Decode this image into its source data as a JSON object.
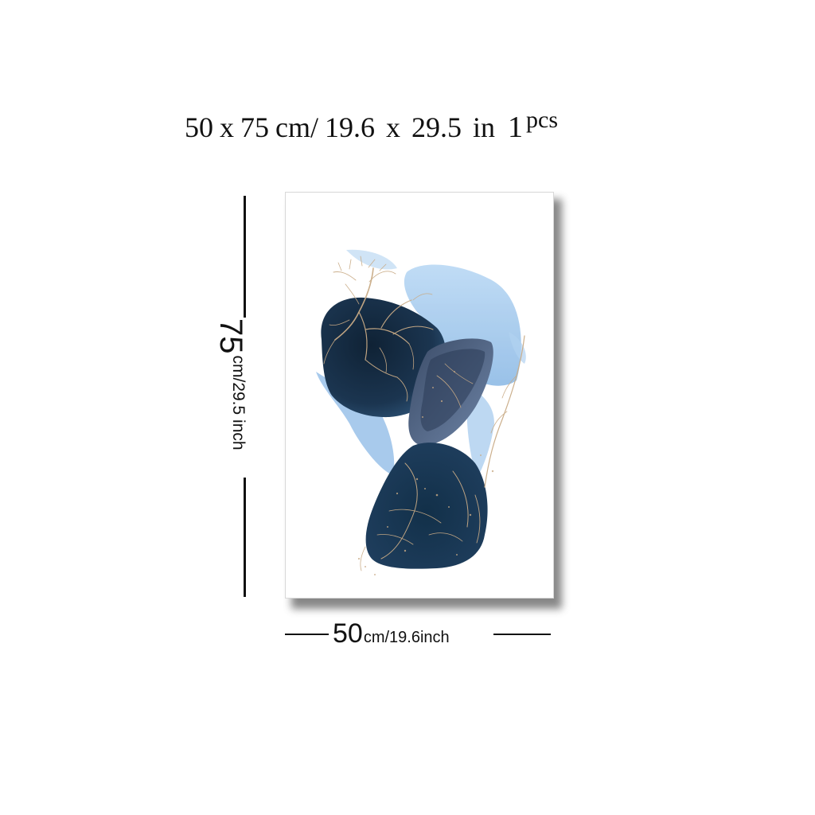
{
  "header": {
    "size_cm_w": "50",
    "x1": "x",
    "size_cm_h": "75",
    "unit_cm": "cm/",
    "size_in_w": "19.6",
    "x2": "x",
    "size_in_h": "29.5",
    "unit_in": "in",
    "qty_num": "1",
    "qty_unit": "pcs"
  },
  "height_dimension": {
    "value": "75",
    "unit": "cm/29.5 inch"
  },
  "width_dimension": {
    "value": "50",
    "unit": "cm/19.6inch"
  },
  "artwork": {
    "colors": {
      "navy": "#1b3550",
      "dark_navy": "#0f2235",
      "light_blue": "#a9cdef",
      "sky_blue": "#7fb2e3",
      "slate": "#5b6f8c",
      "gold": "#c9ab86"
    }
  }
}
